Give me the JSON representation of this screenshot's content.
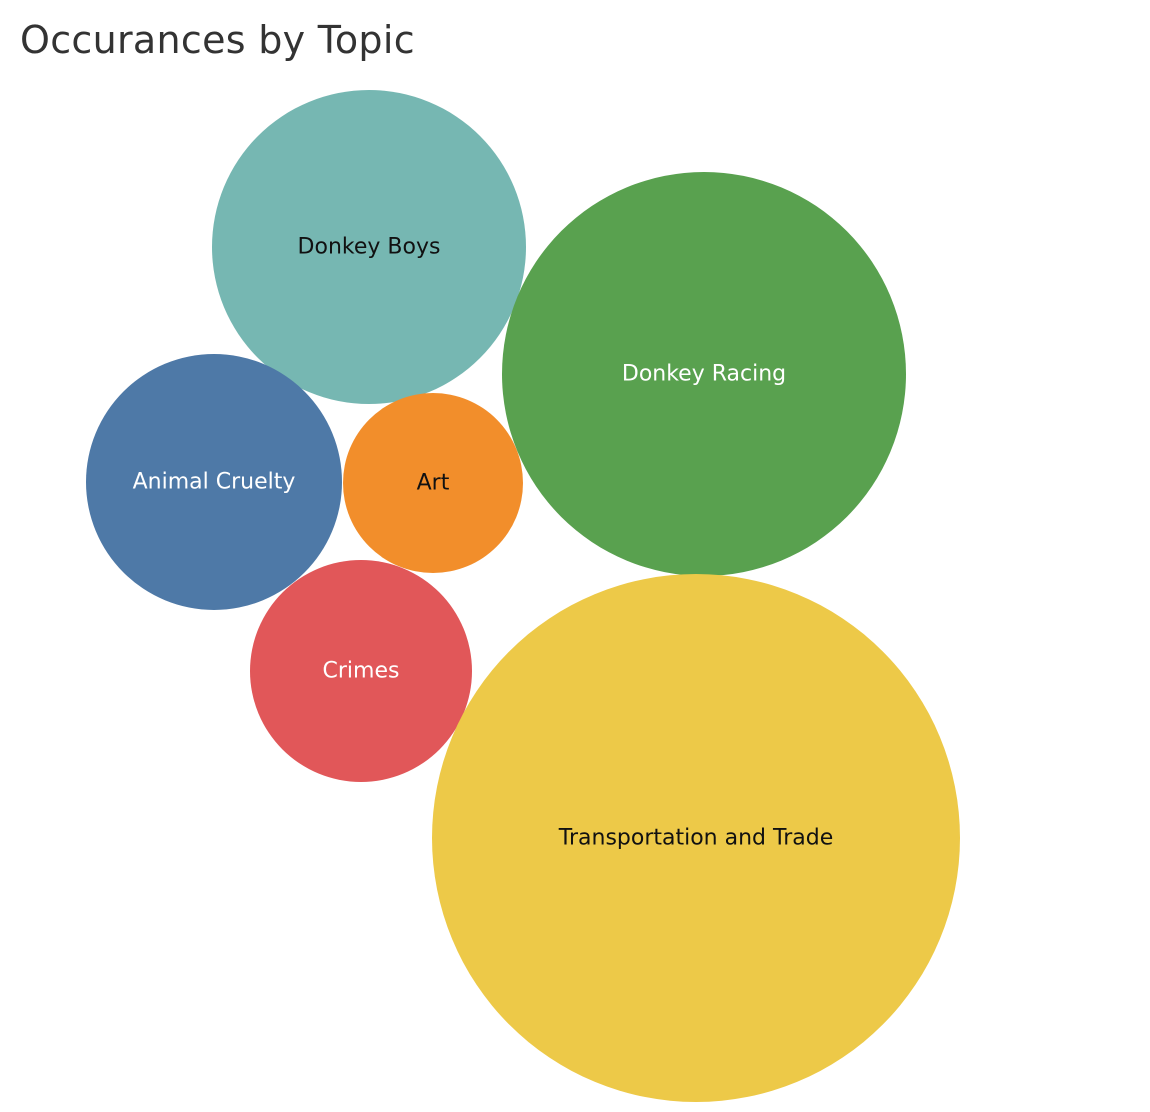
{
  "title": "Occurances by Topic",
  "chart_data": {
    "type": "packed-bubble",
    "title": "Occurances by Topic",
    "series": [
      {
        "name": "Donkey Boys",
        "color": "#76b7b2",
        "text_color": "#111111"
      },
      {
        "name": "Donkey Racing",
        "color": "#59a14f",
        "text_color": "#ffffff"
      },
      {
        "name": "Animal Cruelty",
        "color": "#4e79a7",
        "text_color": "#ffffff"
      },
      {
        "name": "Art",
        "color": "#f28e2b",
        "text_color": "#111111"
      },
      {
        "name": "Crimes",
        "color": "#e15759",
        "text_color": "#ffffff"
      },
      {
        "name": "Transportation and Trade",
        "color": "#edc948",
        "text_color": "#111111"
      }
    ]
  }
}
